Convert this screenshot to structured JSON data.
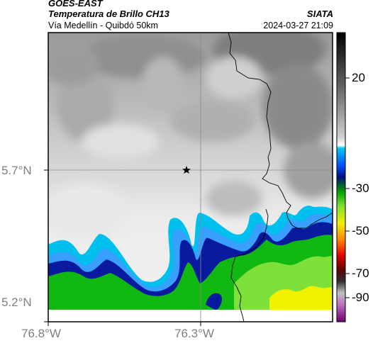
{
  "header": {
    "product": "GOES-EAST",
    "title": "Temperatura de Brillo CH13",
    "organization": "SIATA",
    "subtitle": "Vía Medellín - Quibdó 50km",
    "timestamp": "2024-03-27 21:09"
  },
  "axes": {
    "latitude_ticks": [
      "5.7°N",
      "5.2°N"
    ],
    "longitude_ticks": [
      "76.8°W",
      "76.3°W"
    ]
  },
  "colorbar": {
    "ticks": [
      "20",
      "-30",
      "-50",
      "-70",
      "-90"
    ],
    "tick_values": [
      20,
      -30,
      -50,
      -70,
      -90
    ],
    "range": [
      -95,
      45
    ],
    "unit_hint": "°C"
  },
  "map": {
    "marker": "star-icon",
    "colors": {
      "warm_gray_dark": "#8a8a8a",
      "warm_gray_light": "#f0f0f0",
      "cyan": "#00c0ee",
      "light_blue": "#3aa0ff",
      "dark_blue": "#0a1a9e",
      "green": "#11b811",
      "light_green": "#7fe03a",
      "yellow": "#f0f000"
    }
  }
}
